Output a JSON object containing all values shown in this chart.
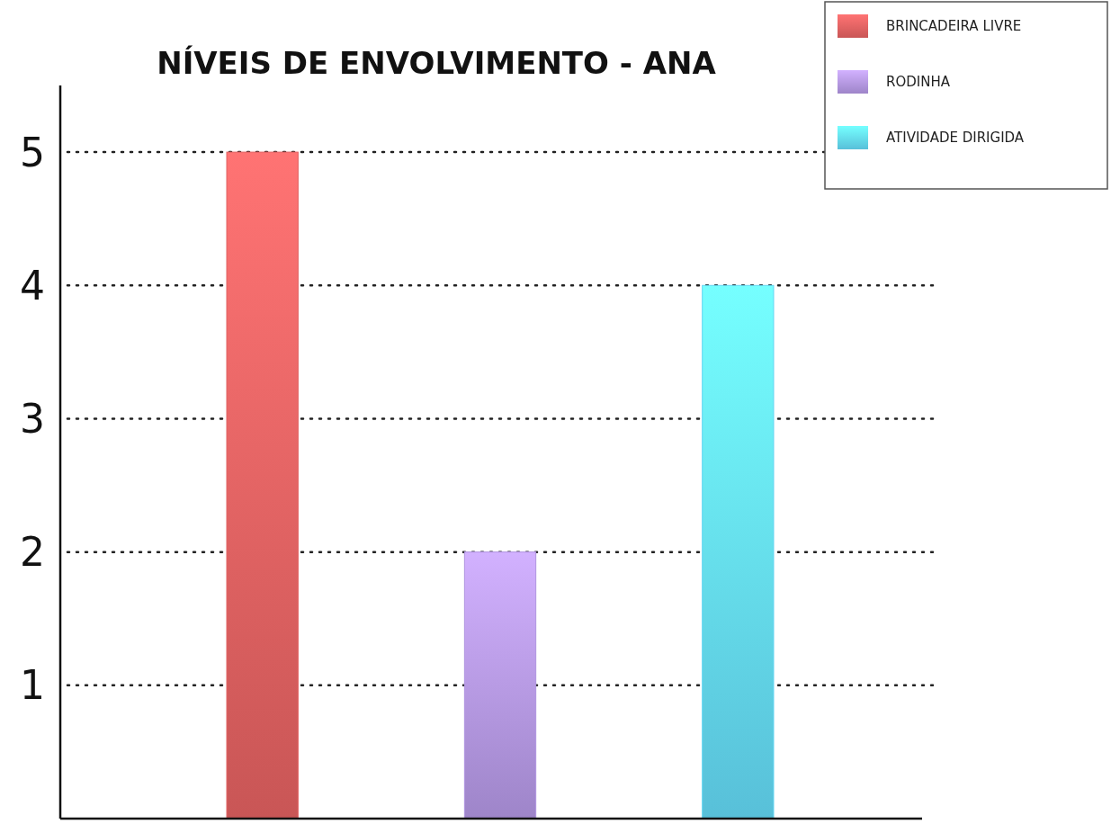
{
  "chart_data": {
    "type": "bar",
    "title": "NÍVEIS DE ENVOLVIMENTO - ANA",
    "categories": [
      null,
      null,
      null
    ],
    "series": [
      {
        "name": "BRINCADEIRA LIVRE",
        "color": "#e06060",
        "values": [
          5,
          null,
          null
        ]
      },
      {
        "name": "RODINHA",
        "color": "#b094e0",
        "values": [
          null,
          2,
          null
        ]
      },
      {
        "name": "ATIVIDADE DIRIGIDA",
        "color": "#62d6f2",
        "values": [
          null,
          null,
          4
        ]
      }
    ],
    "ylim": [
      0,
      5.5
    ],
    "yticks": [
      1,
      2,
      3,
      4,
      5
    ],
    "grid": "y",
    "legend": "top right"
  }
}
